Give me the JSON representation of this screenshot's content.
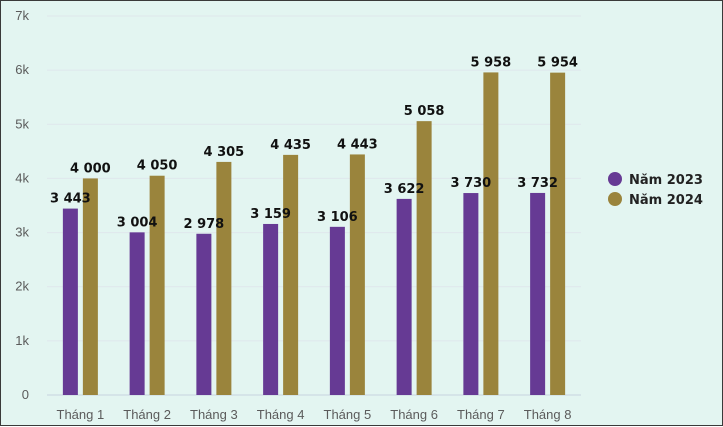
{
  "chart_data": {
    "type": "bar",
    "title": "",
    "xlabel": "",
    "ylabel": "",
    "categories": [
      "Tháng 1",
      "Tháng 2",
      "Tháng 3",
      "Tháng 4",
      "Tháng 5",
      "Tháng 6",
      "Tháng 7",
      "Tháng 8"
    ],
    "series": [
      {
        "name": "Năm 2023",
        "color": "#663a94",
        "values": [
          3443,
          3004,
          2978,
          3159,
          3106,
          3622,
          3730,
          3732
        ],
        "labels": [
          "3 443",
          "3 004",
          "2 978",
          "3 159",
          "3 106",
          "3 622",
          "3 730",
          "3 732"
        ]
      },
      {
        "name": "Năm 2024",
        "color": "#9a843c",
        "values": [
          4000,
          4050,
          4305,
          4435,
          4443,
          5058,
          5958,
          5954
        ],
        "labels": [
          "4 000",
          "4 050",
          "4 305",
          "4 435",
          "4 443",
          "5 058",
          "5 958",
          "5 954"
        ]
      }
    ],
    "ylim": [
      0,
      7000
    ],
    "yticks": [
      0,
      1000,
      2000,
      3000,
      4000,
      5000,
      6000,
      7000
    ],
    "ytick_labels": [
      "0",
      "1k",
      "2k",
      "3k",
      "4k",
      "5k",
      "6k",
      "7k"
    ],
    "grid": true,
    "legend_position": "right"
  }
}
